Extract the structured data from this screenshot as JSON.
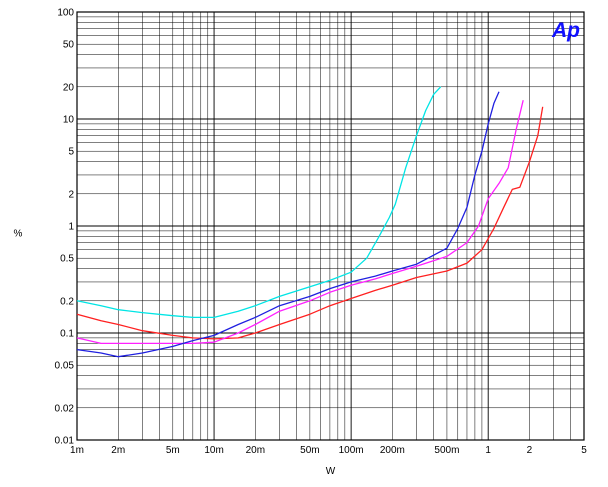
{
  "chart_data": {
    "type": "line",
    "title": "",
    "xlabel": "W",
    "ylabel": "%",
    "x_scale": "log",
    "y_scale": "log",
    "xlim": [
      0.001,
      5
    ],
    "ylim": [
      0.01,
      100
    ],
    "grid": true,
    "logo": "Ap",
    "x_ticks": [
      {
        "value": 0.001,
        "label": "1m"
      },
      {
        "value": 0.002,
        "label": "2m"
      },
      {
        "value": 0.005,
        "label": "5m"
      },
      {
        "value": 0.01,
        "label": "10m"
      },
      {
        "value": 0.02,
        "label": "20m"
      },
      {
        "value": 0.05,
        "label": "50m"
      },
      {
        "value": 0.1,
        "label": "100m"
      },
      {
        "value": 0.2,
        "label": "200m"
      },
      {
        "value": 0.5,
        "label": "500m"
      },
      {
        "value": 1,
        "label": "1"
      },
      {
        "value": 2,
        "label": "2"
      },
      {
        "value": 5,
        "label": "5"
      }
    ],
    "y_ticks": [
      {
        "value": 0.01,
        "label": "0.01"
      },
      {
        "value": 0.02,
        "label": "0.02"
      },
      {
        "value": 0.05,
        "label": "0.05"
      },
      {
        "value": 0.1,
        "label": "0.1"
      },
      {
        "value": 0.2,
        "label": "0.2"
      },
      {
        "value": 0.5,
        "label": "0.5"
      },
      {
        "value": 1,
        "label": "1"
      },
      {
        "value": 2,
        "label": "2"
      },
      {
        "value": 5,
        "label": "5"
      },
      {
        "value": 10,
        "label": "10"
      },
      {
        "value": 20,
        "label": "20"
      },
      {
        "value": 50,
        "label": "50"
      },
      {
        "value": 100,
        "label": "100"
      }
    ],
    "series": [
      {
        "color": "#00e5e5",
        "x": [
          0.001,
          0.0015,
          0.002,
          0.003,
          0.005,
          0.007,
          0.01,
          0.015,
          0.02,
          0.03,
          0.05,
          0.07,
          0.1,
          0.13,
          0.16,
          0.19,
          0.21,
          0.25,
          0.3,
          0.35,
          0.4,
          0.45
        ],
        "y": [
          0.2,
          0.18,
          0.165,
          0.155,
          0.145,
          0.14,
          0.14,
          0.16,
          0.18,
          0.22,
          0.27,
          0.31,
          0.37,
          0.5,
          0.8,
          1.2,
          1.6,
          3.5,
          7,
          12,
          17,
          20
        ]
      },
      {
        "color": "#ff2020",
        "x": [
          0.001,
          0.0015,
          0.002,
          0.003,
          0.005,
          0.007,
          0.01,
          0.015,
          0.02,
          0.03,
          0.05,
          0.07,
          0.1,
          0.15,
          0.2,
          0.3,
          0.5,
          0.7,
          0.9,
          1.1,
          1.3,
          1.5,
          1.7,
          2.0,
          2.3,
          2.5
        ],
        "y": [
          0.15,
          0.13,
          0.12,
          0.105,
          0.095,
          0.09,
          0.088,
          0.09,
          0.1,
          0.12,
          0.15,
          0.18,
          0.21,
          0.25,
          0.28,
          0.33,
          0.38,
          0.45,
          0.6,
          0.95,
          1.5,
          2.2,
          2.3,
          4,
          7,
          13
        ]
      },
      {
        "color": "#ff20ff",
        "x": [
          0.001,
          0.0015,
          0.002,
          0.003,
          0.005,
          0.007,
          0.01,
          0.015,
          0.02,
          0.03,
          0.05,
          0.07,
          0.1,
          0.15,
          0.2,
          0.3,
          0.5,
          0.7,
          0.85,
          1.0,
          1.2,
          1.4,
          1.6,
          1.8
        ],
        "y": [
          0.09,
          0.08,
          0.08,
          0.08,
          0.08,
          0.08,
          0.082,
          0.1,
          0.12,
          0.16,
          0.2,
          0.24,
          0.28,
          0.32,
          0.36,
          0.42,
          0.52,
          0.7,
          1.0,
          1.8,
          2.5,
          3.5,
          8,
          15
        ]
      },
      {
        "color": "#2020e0",
        "x": [
          0.001,
          0.0015,
          0.002,
          0.003,
          0.005,
          0.007,
          0.01,
          0.015,
          0.02,
          0.03,
          0.05,
          0.07,
          0.1,
          0.15,
          0.2,
          0.3,
          0.5,
          0.6,
          0.7,
          0.8,
          0.9,
          1.0,
          1.1,
          1.2
        ],
        "y": [
          0.07,
          0.065,
          0.06,
          0.065,
          0.075,
          0.085,
          0.095,
          0.12,
          0.14,
          0.18,
          0.22,
          0.26,
          0.3,
          0.34,
          0.38,
          0.44,
          0.62,
          0.95,
          1.5,
          3,
          5,
          9,
          14,
          18
        ]
      }
    ]
  }
}
